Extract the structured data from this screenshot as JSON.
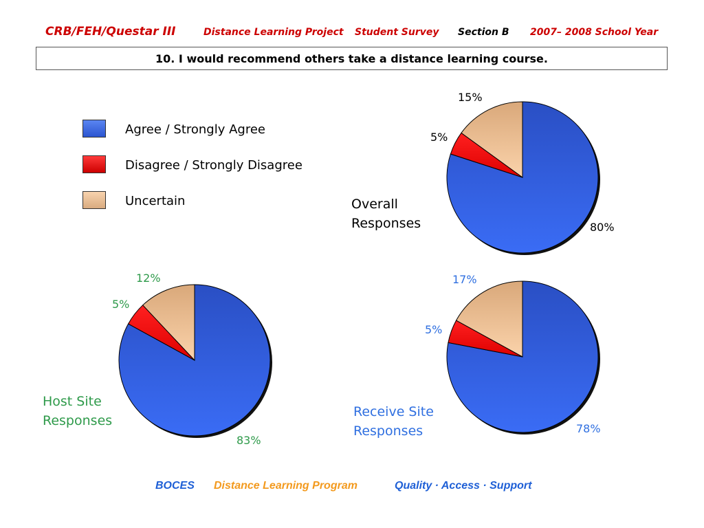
{
  "header": {
    "org": "CRB/FEH/Questar III",
    "project": "Distance Learning Project",
    "survey": "Student Survey",
    "section": "Section B",
    "year": "2007– 2008 School Year"
  },
  "question": "10. I would recommend others take a distance learning course.",
  "colors": {
    "agree": "#3366ee",
    "disagree": "#ee0000",
    "uncertain": "#f5c89c",
    "green": "#2e9a4a",
    "blue": "#2f6fe0"
  },
  "chart_data": [
    {
      "type": "pie",
      "title": "Overall Responses",
      "title_lines": [
        "Overall",
        "Responses"
      ],
      "legend": [
        "Agree / Strongly Agree",
        "Disagree / Strongly Disagree",
        "Uncertain"
      ],
      "legend_position": "left",
      "slices": [
        {
          "name": "Agree / Strongly Agree",
          "value": 80,
          "label": "80%"
        },
        {
          "name": "Disagree / Strongly Disagree",
          "value": 5,
          "label": "5%"
        },
        {
          "name": "Uncertain",
          "value": 15,
          "label": "15%"
        }
      ]
    },
    {
      "type": "pie",
      "title": "Host Site Responses",
      "title_lines": [
        "Host Site",
        "Responses"
      ],
      "slices": [
        {
          "name": "Agree / Strongly Agree",
          "value": 83,
          "label": "83%"
        },
        {
          "name": "Disagree / Strongly Disagree",
          "value": 5,
          "label": "5%"
        },
        {
          "name": "Uncertain",
          "value": 12,
          "label": "12%"
        }
      ]
    },
    {
      "type": "pie",
      "title": "Receive Site Responses",
      "title_lines": [
        "Receive Site",
        "Responses"
      ],
      "slices": [
        {
          "name": "Agree / Strongly Agree",
          "value": 78,
          "label": "78%"
        },
        {
          "name": "Disagree / Strongly Disagree",
          "value": 5,
          "label": "5%"
        },
        {
          "name": "Uncertain",
          "value": 17,
          "label": "17%"
        }
      ]
    }
  ],
  "footer": {
    "boces": "BOCES",
    "program": "Distance Learning Program",
    "tagline": "Quality · Access · Support"
  }
}
